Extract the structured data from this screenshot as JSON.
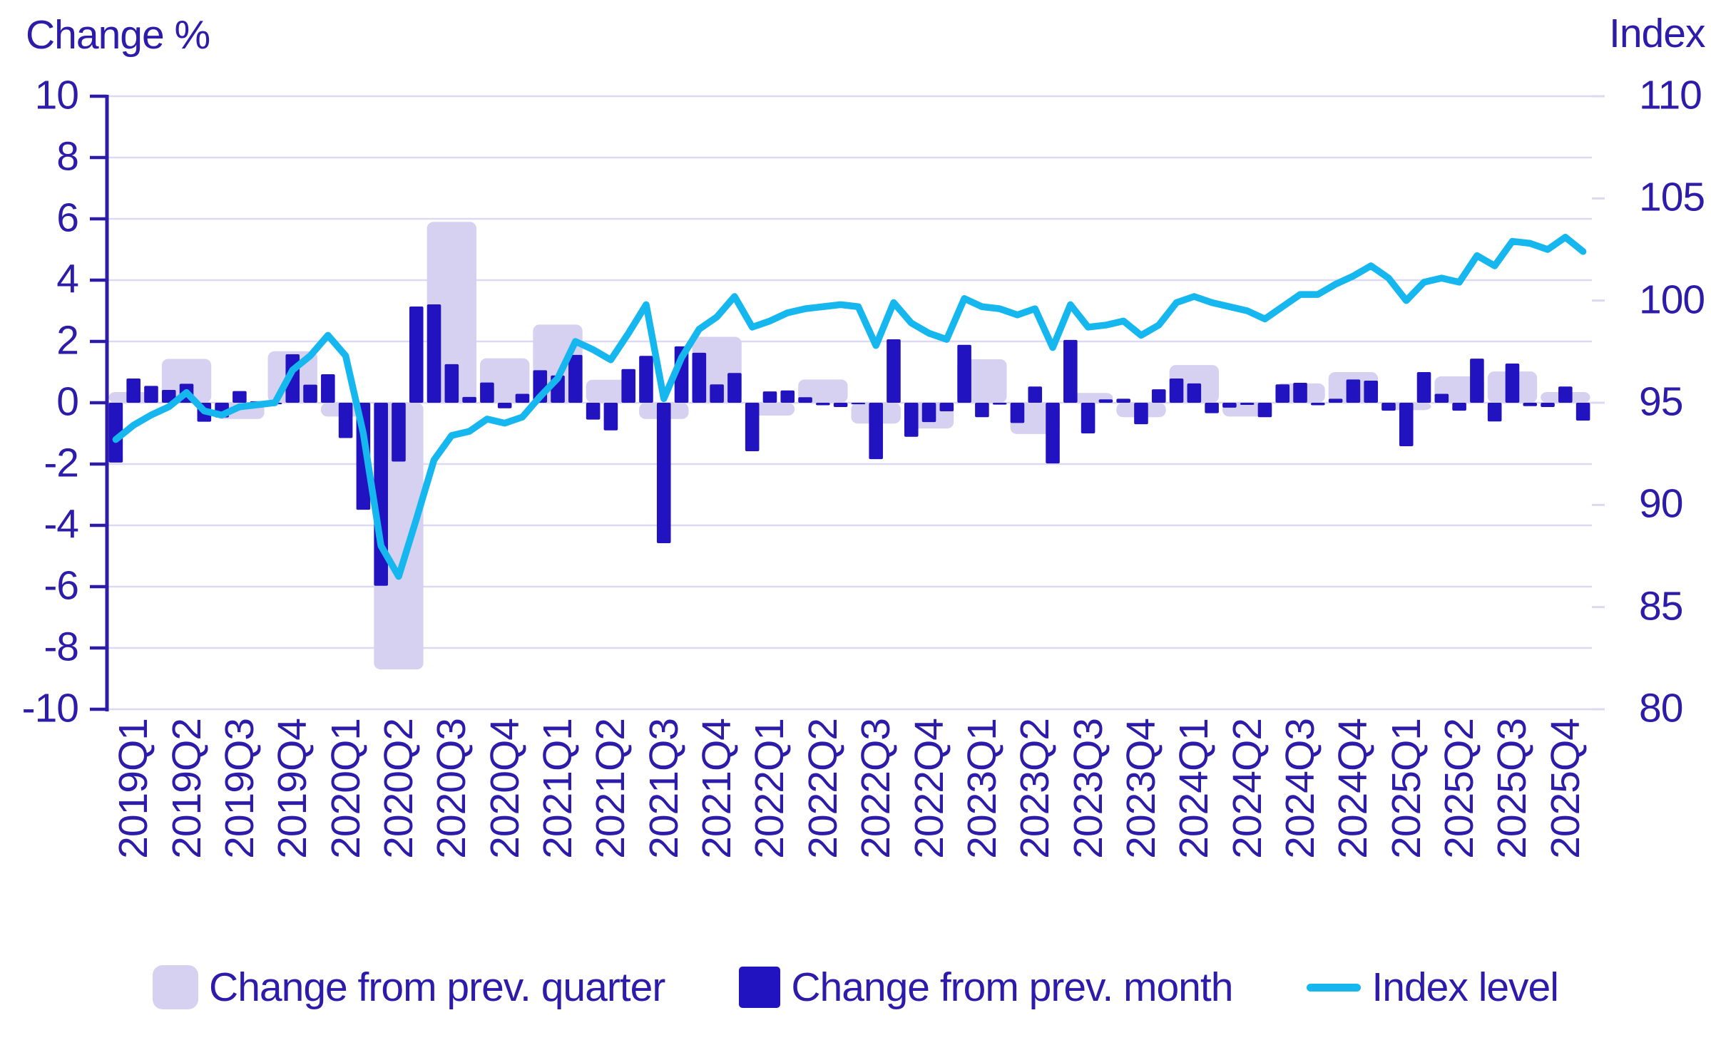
{
  "chart_data": {
    "type": "combo-bar-line",
    "title_left": "Change %",
    "title_right": "Index",
    "y_left": {
      "label": "Change %",
      "min": -10,
      "max": 10,
      "tick_labels": [
        "10",
        "8",
        "6",
        "4",
        "2",
        "0",
        "-2",
        "-4",
        "-6",
        "-8",
        "-10"
      ],
      "tick_values": [
        10,
        8,
        6,
        4,
        2,
        0,
        -2,
        -4,
        -6,
        -8,
        -10
      ]
    },
    "y_right": {
      "label": "Index",
      "min": 80,
      "max": 110,
      "tick_labels": [
        "110",
        "105",
        "100",
        "95",
        "90",
        "85",
        "80"
      ],
      "tick_values": [
        110,
        105,
        100,
        95,
        90,
        85,
        80
      ]
    },
    "grid": "horizontal-every-2-left-units",
    "legend_position": "bottom-center",
    "quarters": [
      "2019Q1",
      "2019Q2",
      "2019Q3",
      "2019Q4",
      "2020Q1",
      "2020Q2",
      "2020Q3",
      "2020Q4",
      "2021Q1",
      "2021Q2",
      "2021Q3",
      "2021Q4",
      "2022Q1",
      "2022Q2",
      "2022Q3",
      "2022Q4",
      "2023Q1",
      "2023Q2",
      "2023Q3",
      "2023Q4",
      "2024Q1",
      "2024Q2",
      "2024Q3",
      "2024Q4",
      "2025Q1",
      "2025Q2",
      "2025Q3",
      "2025Q4"
    ],
    "series": [
      {
        "name": "Change from prev. quarter",
        "type": "bar",
        "per": "quarter",
        "axis": "left",
        "values": [
          0.35,
          1.43,
          -0.53,
          1.68,
          -0.45,
          -8.7,
          5.9,
          1.45,
          2.55,
          0.75,
          -0.53,
          2.15,
          -0.42,
          0.76,
          -0.68,
          -0.84,
          1.42,
          -1.02,
          0.32,
          -0.47,
          1.23,
          -0.45,
          0.63,
          1.0,
          -0.24,
          0.86,
          1.02,
          0.35
        ]
      },
      {
        "name": "Change from prev. month",
        "type": "bar",
        "per": "month",
        "axis": "left",
        "values": [
          -1.95,
          0.79,
          0.55,
          0.42,
          0.62,
          -0.62,
          -0.48,
          0.38,
          0.05,
          -0.05,
          1.58,
          0.59,
          0.93,
          -1.15,
          -3.49,
          -5.97,
          -1.92,
          3.14,
          3.21,
          1.26,
          0.19,
          0.66,
          -0.18,
          0.29,
          1.06,
          0.89,
          1.56,
          -0.55,
          -0.9,
          1.1,
          1.53,
          -4.58,
          1.84,
          1.63,
          0.6,
          0.97,
          -1.58,
          0.37,
          0.4,
          0.18,
          -0.08,
          -0.14,
          -0.05,
          -1.84,
          2.07,
          -1.11,
          -0.63,
          -0.28,
          1.89,
          -0.47,
          -0.06,
          -0.66,
          0.53,
          -1.98,
          2.05,
          -1.0,
          0.11,
          0.13,
          -0.7,
          0.44,
          0.79,
          0.63,
          -0.34,
          -0.16,
          -0.07,
          -0.47,
          0.6,
          0.65,
          -0.08,
          0.13,
          0.76,
          0.72,
          -0.26,
          -1.42,
          1.0,
          0.29,
          -0.26,
          1.44,
          -0.61,
          1.28,
          -0.11,
          -0.14,
          0.53,
          -0.58
        ]
      },
      {
        "name": "Index level",
        "type": "line",
        "per": "month",
        "axis": "right",
        "values": [
          93.2,
          93.9,
          94.4,
          94.8,
          95.5,
          94.6,
          94.4,
          94.8,
          94.9,
          95.0,
          96.6,
          97.3,
          98.3,
          97.3,
          93.5,
          88.0,
          86.5,
          89.3,
          92.2,
          93.4,
          93.6,
          94.2,
          94.0,
          94.3,
          95.3,
          96.2,
          98.0,
          97.6,
          97.1,
          98.4,
          99.8,
          95.2,
          97.2,
          98.6,
          99.2,
          100.2,
          98.7,
          99.0,
          99.4,
          99.6,
          99.7,
          99.8,
          99.7,
          97.8,
          99.9,
          98.9,
          98.4,
          98.1,
          100.1,
          99.7,
          99.6,
          99.3,
          99.6,
          97.7,
          99.8,
          98.7,
          98.8,
          99.0,
          98.3,
          98.8,
          99.9,
          100.2,
          99.9,
          99.7,
          99.5,
          99.1,
          99.7,
          100.3,
          100.3,
          100.8,
          101.2,
          101.7,
          101.1,
          100.0,
          100.9,
          101.1,
          100.9,
          102.2,
          101.7,
          102.9,
          102.8,
          102.5,
          103.1,
          102.4
        ]
      }
    ],
    "legend": [
      {
        "label": "Change from prev. quarter",
        "swatch": "quarter-bar"
      },
      {
        "label": "Change from prev. month",
        "swatch": "month-bar"
      },
      {
        "label": "Index level",
        "swatch": "line"
      }
    ],
    "colors": {
      "background": "#ffffff",
      "quarter_bar": "#d6d1f0",
      "month_bar": "#2213c0",
      "index_line": "#15b7ee",
      "axis_text": "#2c1ca9",
      "gridline": "#dcdaf2"
    }
  }
}
